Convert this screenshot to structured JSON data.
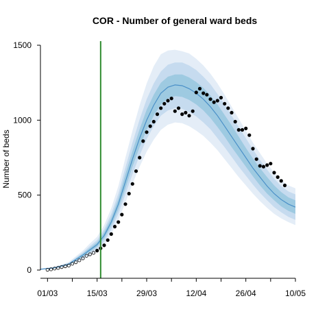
{
  "chart_data": {
    "type": "line",
    "title": "COR - Number of general ward beds",
    "xlabel": "",
    "ylabel": "Number of beds",
    "x_start_date": "2020-02-28",
    "x_end_date": "2020-05-10",
    "xlim_days": [
      0,
      72
    ],
    "ylim": [
      0,
      1500
    ],
    "y_ticks": [
      0,
      500,
      1000,
      1500
    ],
    "x_tick_days": [
      2,
      16,
      30,
      44,
      58,
      72
    ],
    "x_tick_labels": [
      "01/03",
      "15/03",
      "29/03",
      "12/04",
      "26/04",
      "10/05"
    ],
    "x_minor_tick_days": [
      9,
      23,
      37,
      51,
      65
    ],
    "vline_day": 17,
    "colors": {
      "median": "#4a90c8",
      "band_inner": "#9ecae1",
      "band_mid": "#c6dbef",
      "band_outer": "#e4edf7",
      "vline": "#2e8b2e",
      "points": "#000000"
    },
    "projection": {
      "days": [
        0,
        4,
        8,
        12,
        14,
        16,
        18,
        20,
        22,
        24,
        26,
        28,
        30,
        32,
        34,
        36,
        38,
        40,
        42,
        44,
        46,
        48,
        50,
        52,
        54,
        56,
        58,
        60,
        62,
        64,
        66,
        68,
        70,
        72
      ],
      "median": [
        5,
        15,
        40,
        100,
        135,
        170,
        230,
        320,
        440,
        590,
        740,
        880,
        1000,
        1100,
        1180,
        1220,
        1235,
        1230,
        1210,
        1180,
        1140,
        1090,
        1030,
        960,
        890,
        820,
        750,
        680,
        620,
        560,
        510,
        470,
        440,
        420
      ],
      "inner_lower": [
        4,
        13,
        36,
        90,
        122,
        155,
        210,
        295,
        405,
        545,
        690,
        820,
        935,
        1030,
        1105,
        1145,
        1160,
        1155,
        1135,
        1105,
        1065,
        1015,
        955,
        890,
        820,
        755,
        690,
        625,
        565,
        510,
        465,
        425,
        395,
        375
      ],
      "inner_upper": [
        7,
        17,
        44,
        110,
        148,
        185,
        252,
        348,
        475,
        640,
        795,
        940,
        1070,
        1170,
        1250,
        1290,
        1305,
        1305,
        1285,
        1255,
        1215,
        1165,
        1105,
        1035,
        965,
        890,
        815,
        745,
        680,
        620,
        565,
        520,
        485,
        465
      ],
      "mid_lower": [
        3,
        11,
        33,
        82,
        112,
        142,
        190,
        270,
        375,
        505,
        640,
        765,
        875,
        960,
        1030,
        1065,
        1080,
        1075,
        1055,
        1025,
        985,
        940,
        880,
        820,
        755,
        690,
        630,
        570,
        515,
        465,
        420,
        385,
        355,
        335
      ],
      "mid_upper": [
        8,
        19,
        48,
        118,
        160,
        200,
        272,
        375,
        510,
        685,
        850,
        1005,
        1140,
        1245,
        1325,
        1370,
        1385,
        1385,
        1365,
        1335,
        1290,
        1240,
        1175,
        1105,
        1030,
        955,
        880,
        805,
        735,
        670,
        610,
        560,
        525,
        505
      ],
      "outer_lower": [
        2,
        9,
        28,
        72,
        98,
        125,
        168,
        240,
        335,
        450,
        575,
        690,
        790,
        870,
        935,
        970,
        985,
        980,
        960,
        930,
        895,
        850,
        800,
        740,
        680,
        620,
        565,
        510,
        460,
        415,
        375,
        345,
        320,
        300
      ],
      "outer_upper": [
        10,
        22,
        54,
        130,
        178,
        222,
        300,
        412,
        560,
        750,
        930,
        1100,
        1245,
        1360,
        1440,
        1465,
        1470,
        1460,
        1445,
        1410,
        1365,
        1310,
        1245,
        1170,
        1090,
        1010,
        930,
        850,
        780,
        710,
        650,
        600,
        565,
        545
      ]
    },
    "observed": {
      "days": [
        2,
        3,
        4,
        5,
        6,
        7,
        8,
        9,
        10,
        11,
        12,
        13,
        14,
        15,
        16,
        17,
        18,
        19,
        20,
        21,
        22,
        23,
        24,
        25,
        26,
        27,
        28,
        29,
        30,
        31,
        32,
        33,
        34,
        35,
        36,
        37,
        38,
        39,
        40,
        41,
        42,
        43,
        44,
        45,
        46,
        47,
        48,
        49,
        50,
        51,
        52,
        53,
        54,
        55,
        56,
        57,
        58,
        59,
        60,
        61,
        62,
        63,
        64,
        65,
        66,
        67,
        68,
        69
      ],
      "values": [
        2,
        5,
        10,
        14,
        20,
        25,
        30,
        42,
        52,
        65,
        78,
        95,
        105,
        115,
        130,
        145,
        165,
        200,
        240,
        290,
        320,
        370,
        440,
        510,
        575,
        660,
        750,
        860,
        920,
        960,
        990,
        1040,
        1080,
        1110,
        1130,
        1145,
        1060,
        1080,
        1040,
        1050,
        1030,
        1060,
        1185,
        1210,
        1180,
        1170,
        1140,
        1120,
        1130,
        1150,
        1110,
        1080,
        1050,
        990,
        935,
        935,
        945,
        900,
        810,
        740,
        695,
        690,
        700,
        710,
        650,
        620,
        595,
        565
      ],
      "open_until_day": 15
    }
  }
}
